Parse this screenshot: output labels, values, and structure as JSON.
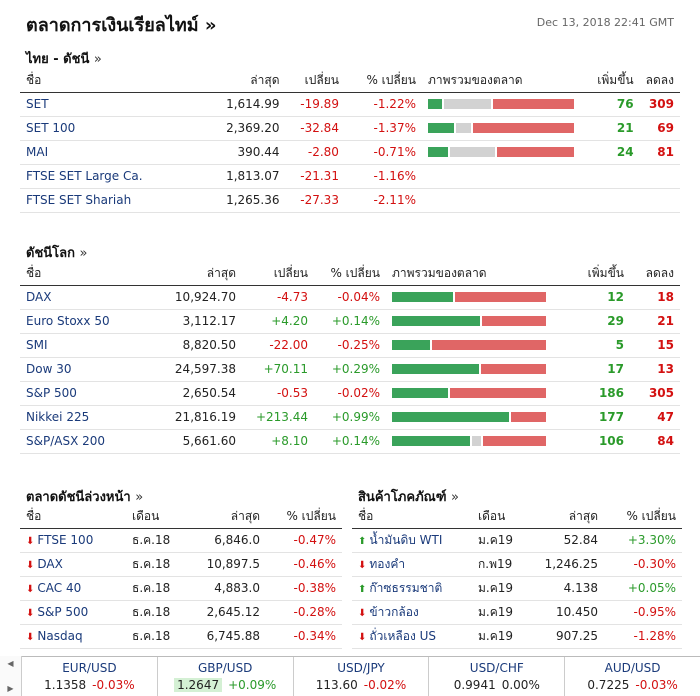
{
  "header": {
    "title": "ตลาดการเงินเรียลไทม์",
    "arrow": "»",
    "timestamp": "Dec 13, 2018 22:41 GMT"
  },
  "thai": {
    "title": "ไทย - ดัชนี",
    "more": "»",
    "cols": [
      "ชื่อ",
      "ล่าสุด",
      "เปลี่ยน",
      "% เปลี่ยน",
      "ภาพรวมของตลาด",
      "เพิ่มขึ้น",
      "ลดลง"
    ],
    "rows": [
      {
        "name": "SET",
        "last": "1,614.99",
        "chg": "-19.89",
        "pct": "-1.22%",
        "up": "76",
        "down": "309",
        "bar": [
          0.1,
          0.33,
          0.57
        ]
      },
      {
        "name": "SET 100",
        "last": "2,369.20",
        "chg": "-32.84",
        "pct": "-1.37%",
        "up": "21",
        "down": "69",
        "bar": [
          0.18,
          0.1,
          0.7
        ]
      },
      {
        "name": "MAI",
        "last": "390.44",
        "chg": "-2.80",
        "pct": "-0.71%",
        "up": "24",
        "down": "81",
        "bar": [
          0.14,
          0.32,
          0.54
        ]
      },
      {
        "name": "FTSE SET Large Ca.",
        "last": "1,813.07",
        "chg": "-21.31",
        "pct": "-1.16%",
        "up": "",
        "down": "",
        "bar": null
      },
      {
        "name": "FTSE SET Shariah",
        "last": "1,265.36",
        "chg": "-27.33",
        "pct": "-2.11%",
        "up": "",
        "down": "",
        "bar": null
      }
    ]
  },
  "world": {
    "title": "ดัชนีโลก",
    "more": "»",
    "cols": [
      "ชื่อ",
      "ล่าสุด",
      "เปลี่ยน",
      "% เปลี่ยน",
      "ภาพรวมของตลาด",
      "เพิ่มขึ้น",
      "ลดลง"
    ],
    "rows": [
      {
        "name": "DAX",
        "last": "10,924.70",
        "chg": "-4.73",
        "pct": "-0.04%",
        "up": "12",
        "down": "18",
        "bar": [
          0.4,
          0,
          0.6
        ]
      },
      {
        "name": "Euro Stoxx 50",
        "last": "3,112.17",
        "chg": "+4.20",
        "pct": "+0.14%",
        "up": "29",
        "down": "21",
        "bar": [
          0.58,
          0,
          0.42
        ]
      },
      {
        "name": "SMI",
        "last": "8,820.50",
        "chg": "-22.00",
        "pct": "-0.25%",
        "up": "5",
        "down": "15",
        "bar": [
          0.25,
          0,
          0.75
        ]
      },
      {
        "name": "Dow 30",
        "last": "24,597.38",
        "chg": "+70.11",
        "pct": "+0.29%",
        "up": "17",
        "down": "13",
        "bar": [
          0.57,
          0,
          0.43
        ]
      },
      {
        "name": "S&P 500",
        "last": "2,650.54",
        "chg": "-0.53",
        "pct": "-0.02%",
        "up": "186",
        "down": "305",
        "bar": [
          0.37,
          0,
          0.63
        ]
      },
      {
        "name": "Nikkei 225",
        "last": "21,816.19",
        "chg": "+213.44",
        "pct": "+0.99%",
        "up": "177",
        "down": "47",
        "bar": [
          0.77,
          0,
          0.23
        ]
      },
      {
        "name": "S&P/ASX 200",
        "last": "5,661.60",
        "chg": "+8.10",
        "pct": "+0.14%",
        "up": "106",
        "down": "84",
        "bar": [
          0.52,
          0.06,
          0.42
        ]
      }
    ]
  },
  "futures": {
    "title": "ตลาดดัชนีล่วงหน้า",
    "more": "»",
    "cols": [
      "ชื่อ",
      "เดือน",
      "ล่าสุด",
      "% เปลี่ยน"
    ],
    "rows": [
      {
        "name": "FTSE 100",
        "month": "ธ.ค.18",
        "last": "6,846.0",
        "pct": "-0.47%",
        "dir": "down"
      },
      {
        "name": "DAX",
        "month": "ธ.ค.18",
        "last": "10,897.5",
        "pct": "-0.46%",
        "dir": "down"
      },
      {
        "name": "CAC 40",
        "month": "ธ.ค.18",
        "last": "4,883.0",
        "pct": "-0.38%",
        "dir": "down"
      },
      {
        "name": "S&P 500",
        "month": "ธ.ค.18",
        "last": "2,645.12",
        "pct": "-0.28%",
        "dir": "down"
      },
      {
        "name": "Nasdaq",
        "month": "ธ.ค.18",
        "last": "6,745.88",
        "pct": "-0.34%",
        "dir": "down"
      }
    ]
  },
  "commodities": {
    "title": "สินค้าโภคภัณฑ์",
    "more": "»",
    "cols": [
      "ชื่อ",
      "เดือน",
      "ล่าสุด",
      "% เปลี่ยน"
    ],
    "rows": [
      {
        "name": "น้ำมันดิบ WTI",
        "month": "ม.ค19",
        "last": "52.84",
        "pct": "+3.30%",
        "dir": "up"
      },
      {
        "name": "ทองคำ",
        "month": "ก.พ19",
        "last": "1,246.25",
        "pct": "-0.30%",
        "dir": "down"
      },
      {
        "name": "ก๊าซธรรมชาติ",
        "month": "ม.ค19",
        "last": "4.138",
        "pct": "+0.05%",
        "dir": "up"
      },
      {
        "name": "ข้าวกล้อง",
        "month": "ม.ค19",
        "last": "10.450",
        "pct": "-0.95%",
        "dir": "down"
      },
      {
        "name": "ถั่วเหลือง US",
        "month": "ม.ค19",
        "last": "907.25",
        "pct": "-1.28%",
        "dir": "down"
      }
    ]
  },
  "ticker": [
    {
      "pair": "EUR/USD",
      "price": "1.1358",
      "chg": "-0.03%",
      "dir": "down",
      "hl": false
    },
    {
      "pair": "GBP/USD",
      "price": "1.2647",
      "chg": "+0.09%",
      "dir": "up",
      "hl": true
    },
    {
      "pair": "USD/JPY",
      "price": "113.60",
      "chg": "-0.02%",
      "dir": "down",
      "hl": false
    },
    {
      "pair": "USD/CHF",
      "price": "0.9941",
      "chg": "0.00%",
      "dir": "flat",
      "hl": false
    },
    {
      "pair": "AUD/USD",
      "price": "0.7225",
      "chg": "-0.03%",
      "dir": "down",
      "hl": false
    }
  ],
  "colors": {
    "up": "#2a9a2a",
    "down": "#d31010",
    "neutral": "#d2d2d2",
    "bar_up": "#3aa35a",
    "bar_down": "#e06666",
    "link": "#1a3a7a"
  }
}
